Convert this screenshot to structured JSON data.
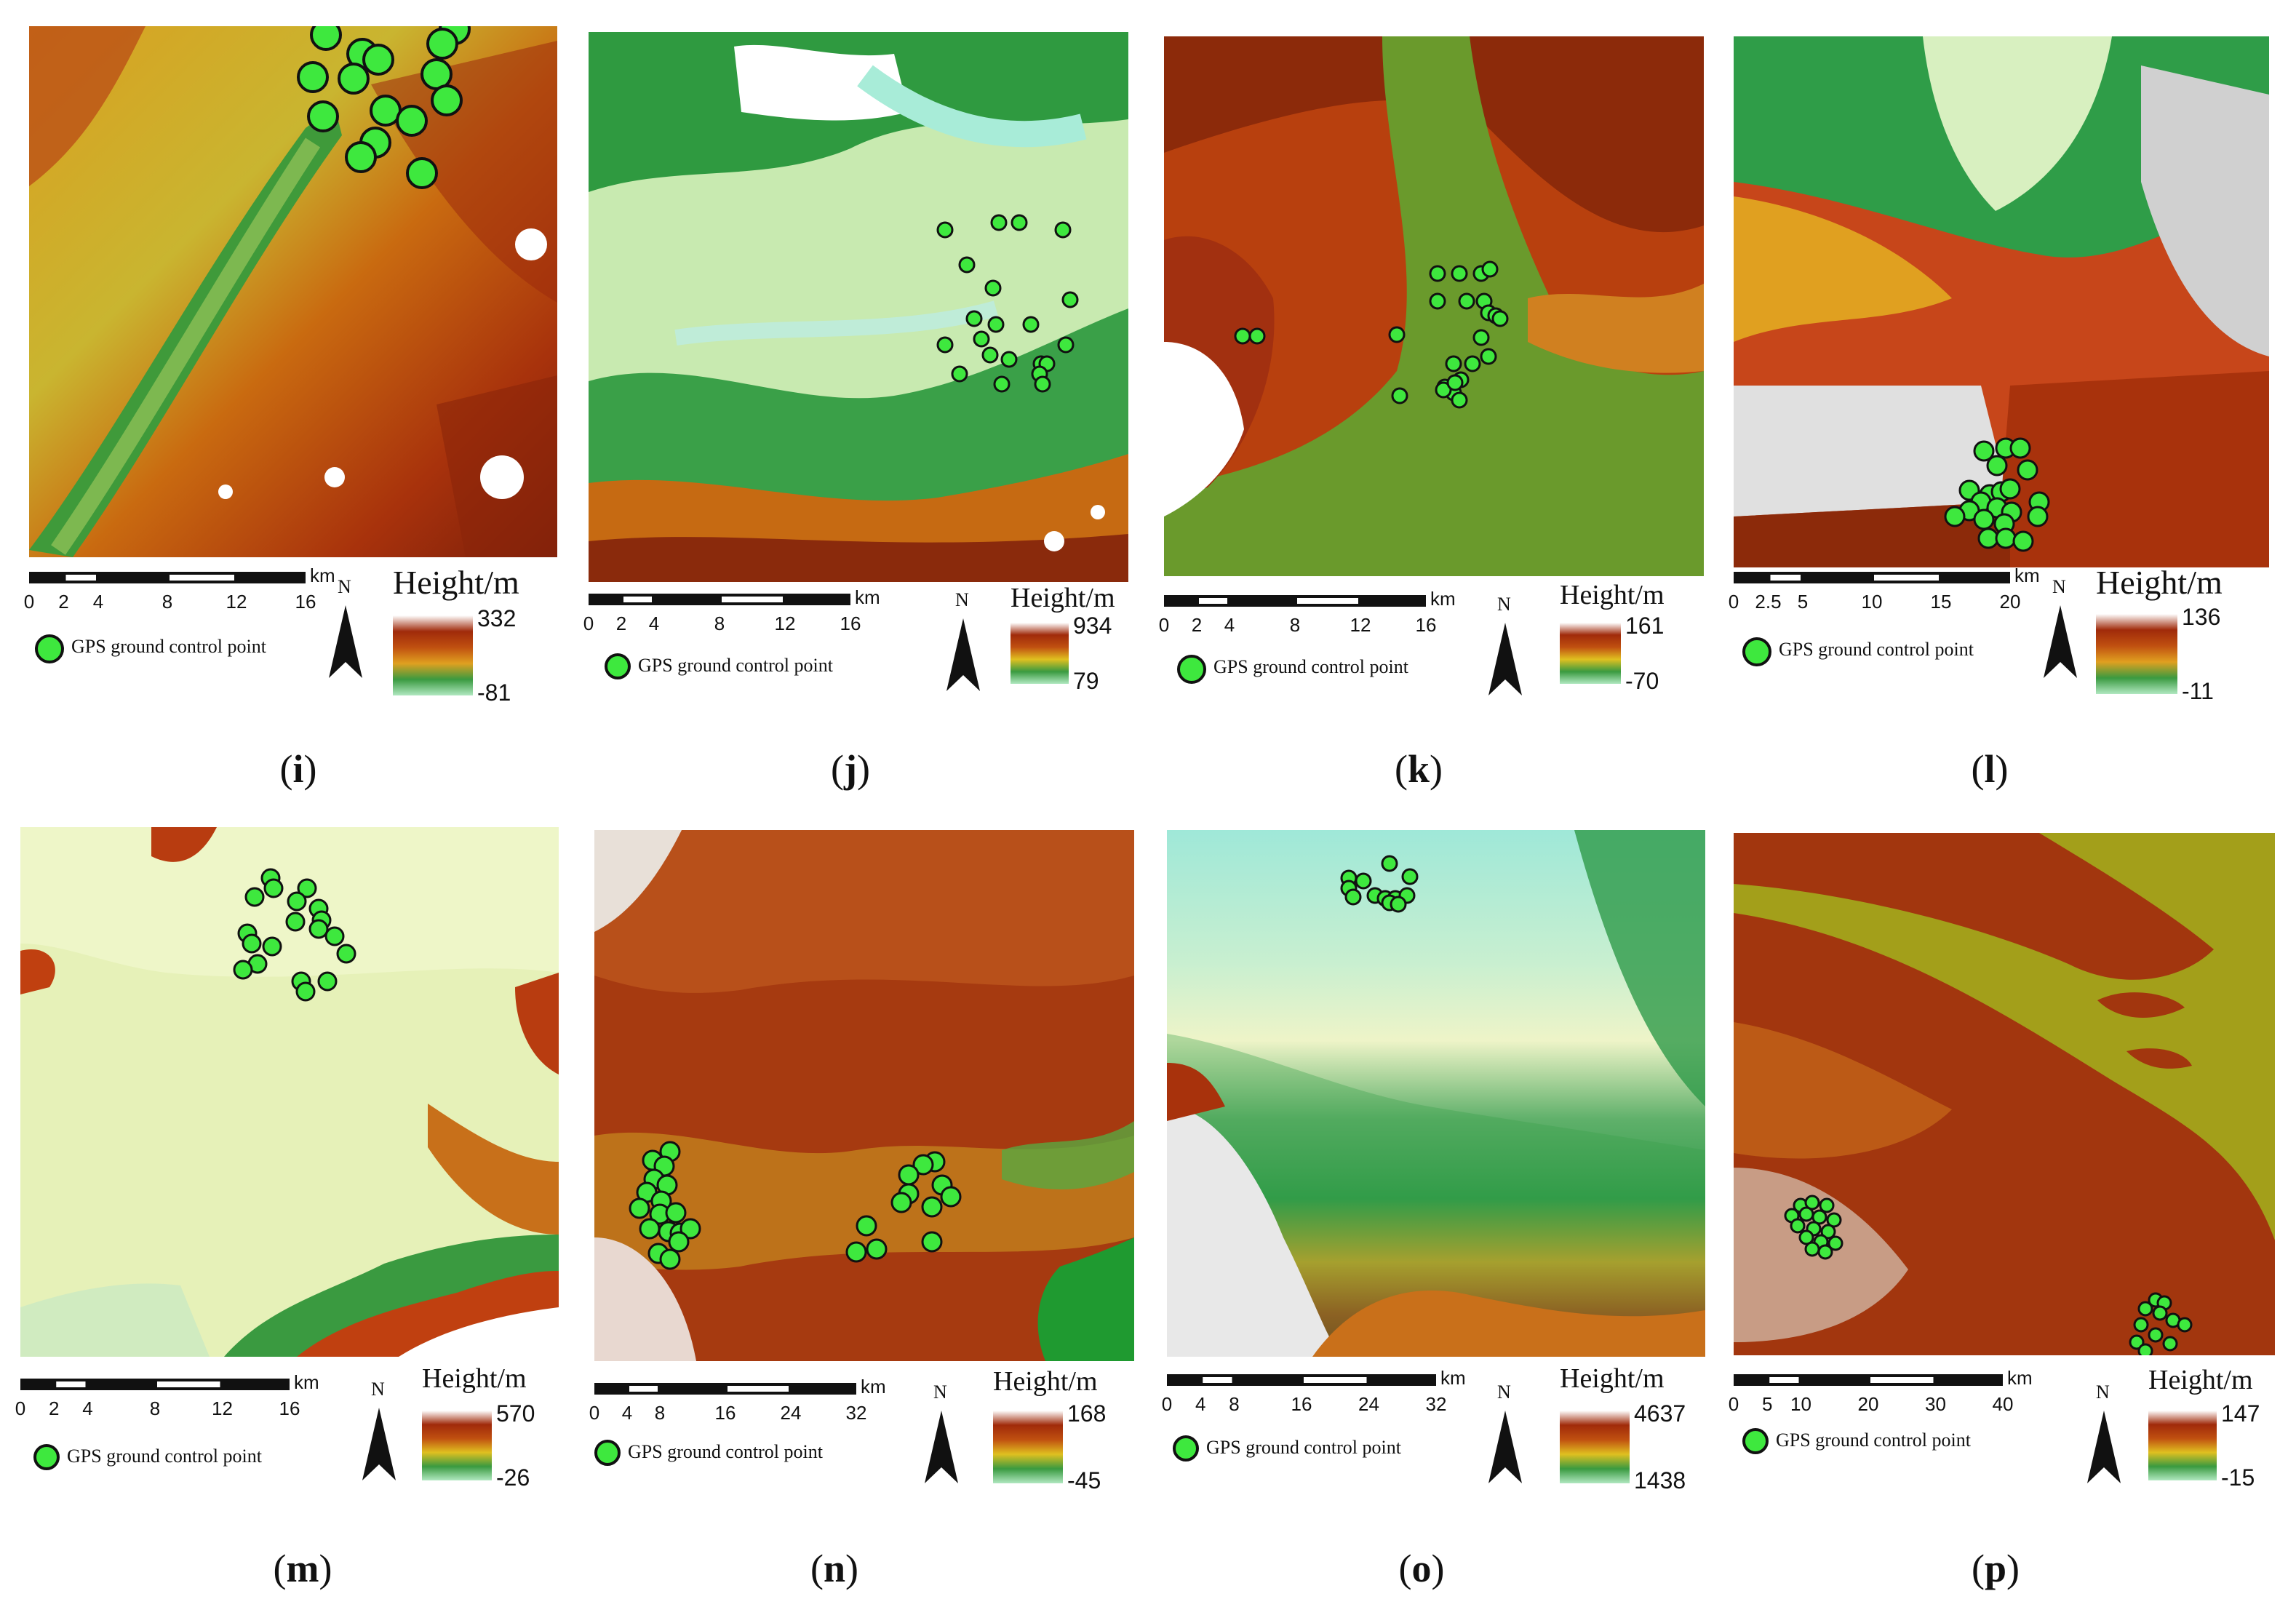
{
  "legend_label": "GPS ground control point",
  "height_title": "Height/m",
  "north_label": "N",
  "km_unit": "km",
  "panels": [
    {
      "letter": "i",
      "max": "332",
      "min": "-81",
      "ticks": [
        "0",
        "2",
        "4",
        "8",
        "12",
        "16"
      ],
      "palette": "terrain",
      "points": 14
    },
    {
      "letter": "j",
      "max": "934",
      "min": "79",
      "ticks": [
        "0",
        "2",
        "4",
        "8",
        "12",
        "16"
      ],
      "palette": "green",
      "points": 22
    },
    {
      "letter": "k",
      "max": "161",
      "min": "-70",
      "ticks": [
        "0",
        "2",
        "4",
        "8",
        "12",
        "16"
      ],
      "palette": "olive",
      "points": 24
    },
    {
      "letter": "l",
      "max": "136",
      "min": "-11",
      "ticks": [
        "0",
        "2.5",
        "5",
        "10",
        "15",
        "20"
      ],
      "palette": "terrain",
      "points": 20
    },
    {
      "letter": "m",
      "max": "570",
      "min": "-26",
      "ticks": [
        "0",
        "2",
        "4",
        "8",
        "12",
        "16"
      ],
      "palette": "pale",
      "points": 16
    },
    {
      "letter": "n",
      "max": "168",
      "min": "-45",
      "ticks": [
        "0",
        "4",
        "8",
        "16",
        "24",
        "32"
      ],
      "palette": "urban",
      "points": 28
    },
    {
      "letter": "o",
      "max": "4637",
      "min": "1438",
      "ticks": [
        "0",
        "4",
        "8",
        "16",
        "24",
        "32"
      ],
      "palette": "plateau",
      "points": 12
    },
    {
      "letter": "p",
      "max": "147",
      "min": "-15",
      "ticks": [
        "0",
        "5",
        "10",
        "20",
        "30",
        "40"
      ],
      "palette": "estuary",
      "points": 26
    }
  ]
}
